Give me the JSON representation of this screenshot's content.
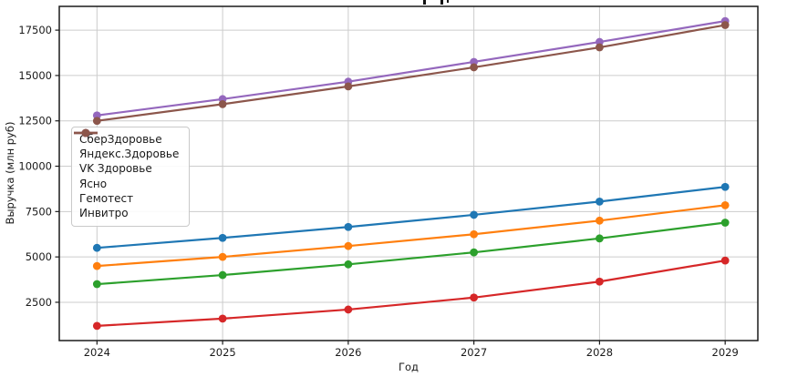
{
  "figure": {
    "background": "#ffffff",
    "note_title_clipped": true
  },
  "colors": {
    "grid": "#cccccc",
    "spine": "#1a1a1a",
    "tick": "#1a1a1a",
    "tick_label": "#1a1a1a"
  },
  "chart_data": {
    "type": "line",
    "xlabel": "Год",
    "ylabel": "Выручка (млн руб)",
    "x": [
      2024,
      2025,
      2026,
      2027,
      2028,
      2029
    ],
    "xticks": [
      2024,
      2025,
      2026,
      2027,
      2028,
      2029
    ],
    "yticks": [
      2500,
      5000,
      7500,
      10000,
      12500,
      15000,
      17500
    ],
    "xlim": [
      2023.7,
      2029.26
    ],
    "ylim": [
      390,
      18810
    ],
    "grid": true,
    "legend_position": "upper-left",
    "marker": "o",
    "series": [
      {
        "name": "СберЗдоровье",
        "color": "#1f77b4",
        "values": [
          5500,
          6050,
          6650,
          7320,
          8050,
          8860
        ]
      },
      {
        "name": "Яндекс.Здоровье",
        "color": "#ff7f0e",
        "values": [
          4500,
          5000,
          5600,
          6250,
          7000,
          7850
        ]
      },
      {
        "name": "VK Здоровье",
        "color": "#2ca02c",
        "values": [
          3500,
          4000,
          4590,
          5250,
          6020,
          6890
        ]
      },
      {
        "name": "Ясно",
        "color": "#d62728",
        "values": [
          1200,
          1600,
          2100,
          2760,
          3640,
          4800
        ]
      },
      {
        "name": "Гемотест",
        "color": "#9467bd",
        "values": [
          12800,
          13700,
          14660,
          15750,
          16850,
          18000
        ]
      },
      {
        "name": "Инвитро",
        "color": "#8c564b",
        "values": [
          12500,
          13420,
          14400,
          15450,
          16550,
          17780
        ]
      }
    ]
  }
}
